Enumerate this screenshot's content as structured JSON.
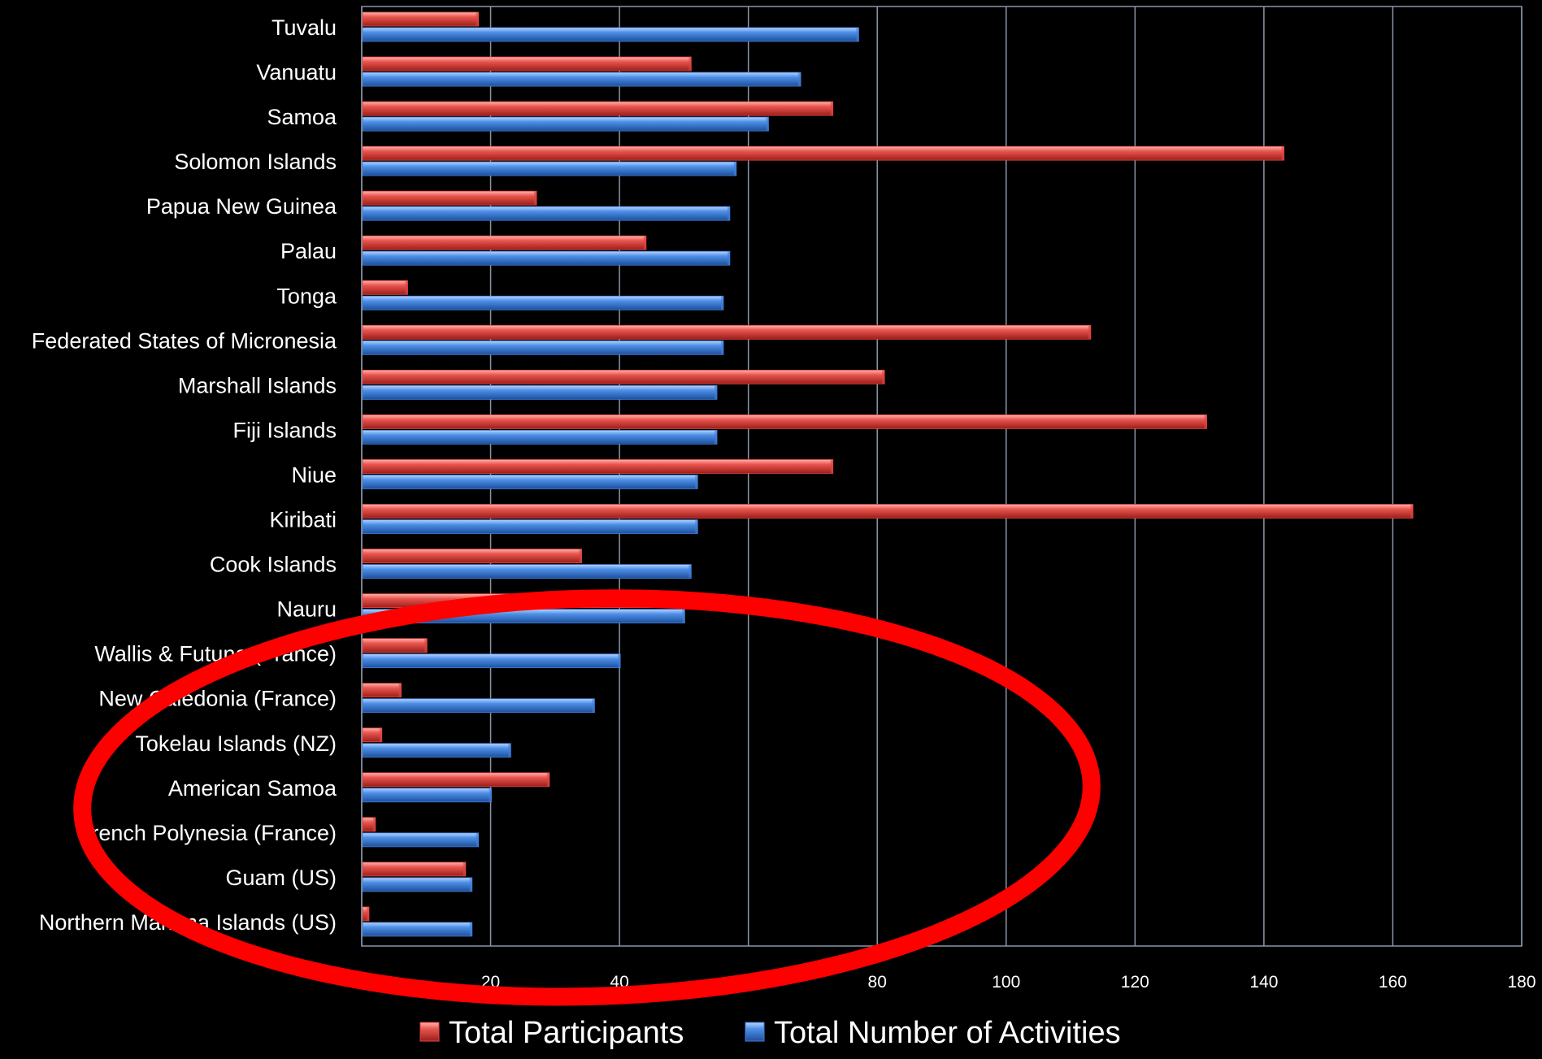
{
  "chart_data": {
    "type": "bar",
    "orientation": "horizontal",
    "categories": [
      "Tuvalu",
      "Vanuatu",
      "Samoa",
      "Solomon Islands",
      "Papua New Guinea",
      "Palau",
      "Tonga",
      "Federated States of Micronesia",
      "Marshall Islands",
      "Fiji Islands",
      "Niue",
      "Kiribati",
      "Cook Islands",
      "Nauru",
      "Wallis & Futuna (France)",
      "New Caledonia (France)",
      "Tokelau Islands (NZ)",
      "American Samoa",
      "French Polynesia (France)",
      "Guam (US)",
      "Northern Mariana Islands (US)"
    ],
    "series": [
      {
        "name": "Total Participants",
        "color": "#e0453f",
        "values": [
          18,
          51,
          73,
          143,
          27,
          44,
          7,
          113,
          81,
          131,
          73,
          163,
          34,
          49,
          10,
          6,
          3,
          29,
          2,
          16,
          1
        ]
      },
      {
        "name": "Total Number of Activities",
        "color": "#3f7fd8",
        "values": [
          77,
          68,
          63,
          58,
          57,
          57,
          56,
          56,
          55,
          55,
          52,
          52,
          51,
          50,
          40,
          36,
          23,
          20,
          18,
          17,
          17
        ]
      }
    ],
    "xlim": [
      0,
      180
    ],
    "xticks": [
      "0",
      "20",
      "40",
      "60",
      "80",
      "100",
      "120",
      "140",
      "160",
      "180"
    ],
    "grid": "vertical",
    "legend": "bottom",
    "annotation": {
      "shape": "ellipse",
      "color": "#ff0000",
      "encircles": [
        "Wallis & Futuna (France)",
        "New Caledonia (France)",
        "Tokelau Islands (NZ)",
        "American Samoa",
        "French Polynesia (France)",
        "Guam (US)",
        "Northern Mariana Islands (US)"
      ]
    }
  }
}
